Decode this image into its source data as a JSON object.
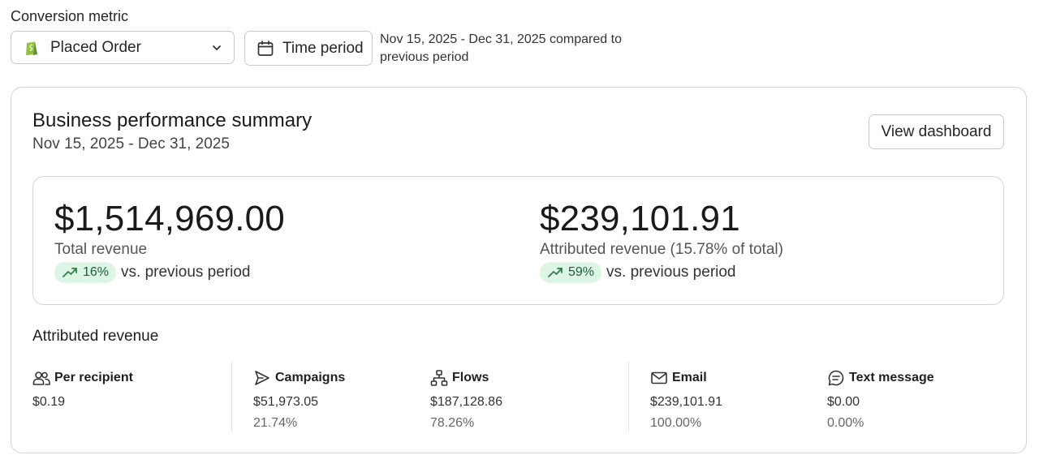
{
  "filters": {
    "conversion_metric_label": "Conversion metric",
    "selected_metric": "Placed Order",
    "time_period_button": "Time period",
    "period_description": "Nov 15, 2025 - Dec 31, 2025 compared to previous period"
  },
  "summary": {
    "title": "Business performance summary",
    "date_range": "Nov 15, 2025 - Dec 31, 2025",
    "view_dashboard_label": "View dashboard"
  },
  "metrics": {
    "total": {
      "value": "$1,514,969.00",
      "label": "Total revenue",
      "change": "16%",
      "vs_text": "vs. previous period"
    },
    "attributed": {
      "value": "$239,101.91",
      "label": "Attributed revenue (15.78% of total)",
      "change": "59%",
      "vs_text": "vs. previous period"
    }
  },
  "attributed_revenue": {
    "title": "Attributed revenue",
    "columns": [
      {
        "name": "Per recipient",
        "icon": "users-icon",
        "value": "$0.19",
        "percent": ""
      },
      {
        "name": "Campaigns",
        "icon": "send-icon",
        "value": "$51,973.05",
        "percent": "21.74%"
      },
      {
        "name": "Flows",
        "icon": "flow-icon",
        "value": "$187,128.86",
        "percent": "78.26%"
      },
      {
        "name": "Email",
        "icon": "mail-icon",
        "value": "$239,101.91",
        "percent": "100.00%"
      },
      {
        "name": "Text message",
        "icon": "message-icon",
        "value": "$0.00",
        "percent": "0.00%"
      }
    ]
  },
  "colors": {
    "positive_pill_bg": "#dcf5e4",
    "positive_text": "#1e5e35",
    "shopify_green": "#5e8e3e"
  }
}
